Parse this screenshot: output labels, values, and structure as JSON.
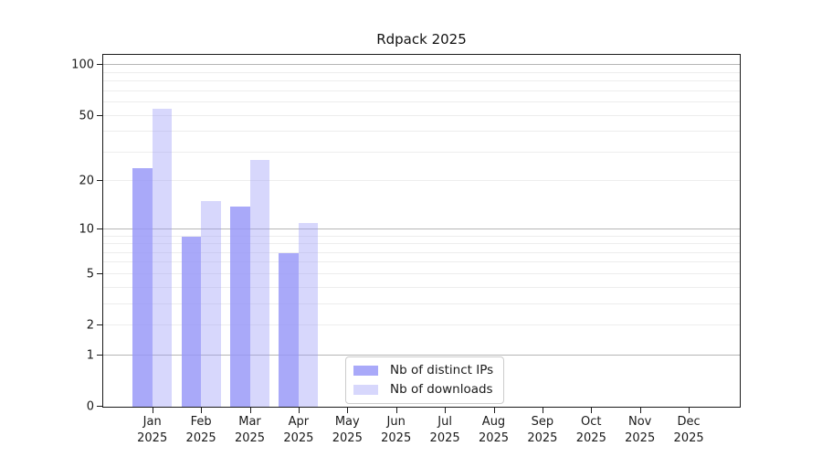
{
  "chart_data": {
    "type": "bar",
    "title": "Rdpack 2025",
    "x_year": "2025",
    "categories": [
      "Jan",
      "Feb",
      "Mar",
      "Apr",
      "May",
      "Jun",
      "Jul",
      "Aug",
      "Sep",
      "Oct",
      "Nov",
      "Dec"
    ],
    "series": [
      {
        "name": "Nb of distinct IPs",
        "color": "#9696f8",
        "opacity": 0.82,
        "values": [
          24,
          9,
          14,
          7,
          0,
          0,
          0,
          0,
          0,
          0,
          0,
          0
        ]
      },
      {
        "name": "Nb of downloads",
        "color": "#9696f8",
        "opacity": 0.38,
        "values": [
          55,
          15,
          27,
          11,
          0,
          0,
          0,
          0,
          0,
          0,
          0,
          0
        ]
      }
    ],
    "y_axis": {
      "scale": "log1p",
      "ticks": [
        0,
        1,
        2,
        5,
        10,
        20,
        50,
        100
      ],
      "ylim": [
        0,
        115
      ]
    },
    "grid": {
      "major_values": [
        1,
        10,
        100
      ],
      "minor_values": [
        2,
        3,
        4,
        5,
        6,
        7,
        8,
        9,
        20,
        30,
        40,
        50,
        60,
        70,
        80,
        90
      ],
      "major_color": "#b6b6b6",
      "minor_color": "#ededed"
    },
    "legend": {
      "position": "inside-lower-center"
    },
    "axis_color": "#1a1a1a",
    "background": "#ffffff"
  }
}
